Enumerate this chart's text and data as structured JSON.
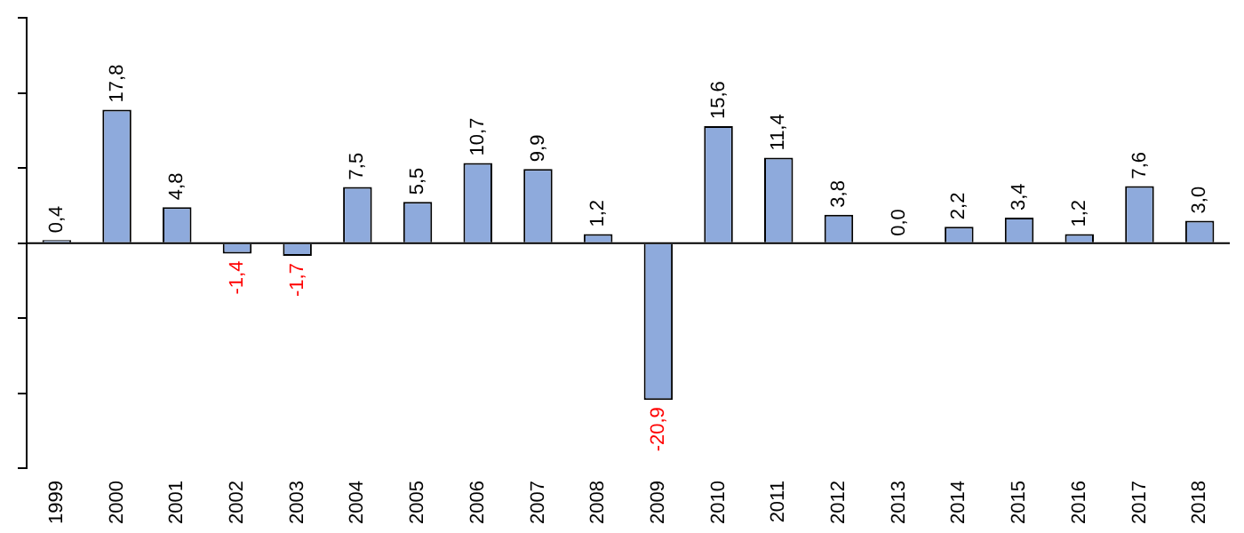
{
  "chart_data": {
    "type": "bar",
    "categories": [
      "1999",
      "2000",
      "2001",
      "2002",
      "2003",
      "2004",
      "2005",
      "2006",
      "2007",
      "2008",
      "2009",
      "2010",
      "2011",
      "2012",
      "2013",
      "2014",
      "2015",
      "2016",
      "2017",
      "2018"
    ],
    "values": [
      0.4,
      17.8,
      4.8,
      -1.4,
      -1.7,
      7.5,
      5.5,
      10.7,
      9.9,
      1.2,
      -20.9,
      15.6,
      11.4,
      3.8,
      0.0,
      2.2,
      3.4,
      1.2,
      7.6,
      3.0
    ],
    "value_labels": [
      "0,4",
      "17,8",
      "4,8",
      "-1,4",
      "-1,7",
      "7,5",
      "5,5",
      "10,7",
      "9,9",
      "1,2",
      "-20,9",
      "15,6",
      "11,4",
      "3,8",
      "0,0",
      "2,2",
      "3,4",
      "1,2",
      "7,6",
      "3,0"
    ],
    "color": "#8eaadc",
    "ylim": [
      -30,
      30
    ],
    "yticks": [
      {
        "value": -30,
        "label": null
      },
      {
        "value": -20,
        "label": null
      },
      {
        "value": -10,
        "label": null
      },
      {
        "value": 0,
        "label": null
      },
      {
        "value": 10,
        "label": null
      },
      {
        "value": 20,
        "label": null
      },
      {
        "value": 30,
        "label": null
      }
    ],
    "tick_labels": "x",
    "grid": false,
    "legend": false
  }
}
